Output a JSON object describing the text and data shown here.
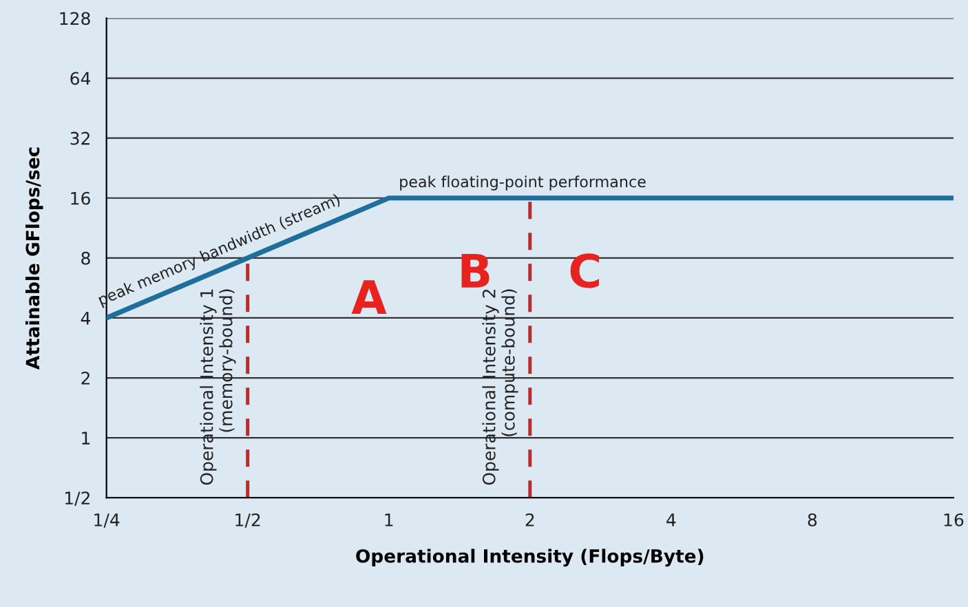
{
  "chart_data": {
    "type": "line",
    "xlabel": "Operational Intensity (Flops/Byte)",
    "ylabel": "Attainable GFlops/sec",
    "x": [
      0.25,
      1,
      16
    ],
    "series": [
      {
        "color": "#1f6f9c",
        "values": [
          4,
          16,
          16
        ]
      }
    ],
    "log": "xy",
    "xlim": [
      0.25,
      16
    ],
    "ylim": [
      0.5,
      128
    ],
    "xticks": [
      {
        "value": 0.25,
        "label": "1/4"
      },
      {
        "value": 0.5,
        "label": "1/2"
      },
      1,
      2,
      4,
      8,
      16
    ],
    "yticks": [
      {
        "value": 0.5,
        "label": "1/2"
      },
      1,
      2,
      4,
      8,
      16,
      32,
      64,
      128
    ],
    "grid": "y",
    "marker": "none",
    "line_style": "solid",
    "ref_lines": [
      {
        "axis": "x",
        "value": 0.5,
        "label": "Operational Intensity 1\n(memory-bound)",
        "color": "#c0282d",
        "line_style": "dashed"
      },
      {
        "axis": "x",
        "value": 2,
        "label": "Operational Intensity 2\n(compute-bound)",
        "color": "#c0282d",
        "line_style": "dashed"
      }
    ],
    "annotations": [
      {
        "text": "peak memory bandwidth (stream)",
        "x": 0.45,
        "y": 7.2
      },
      {
        "text": "peak floating-point performance",
        "x": 1.05,
        "y": 16
      },
      "A",
      "B",
      "C"
    ]
  }
}
